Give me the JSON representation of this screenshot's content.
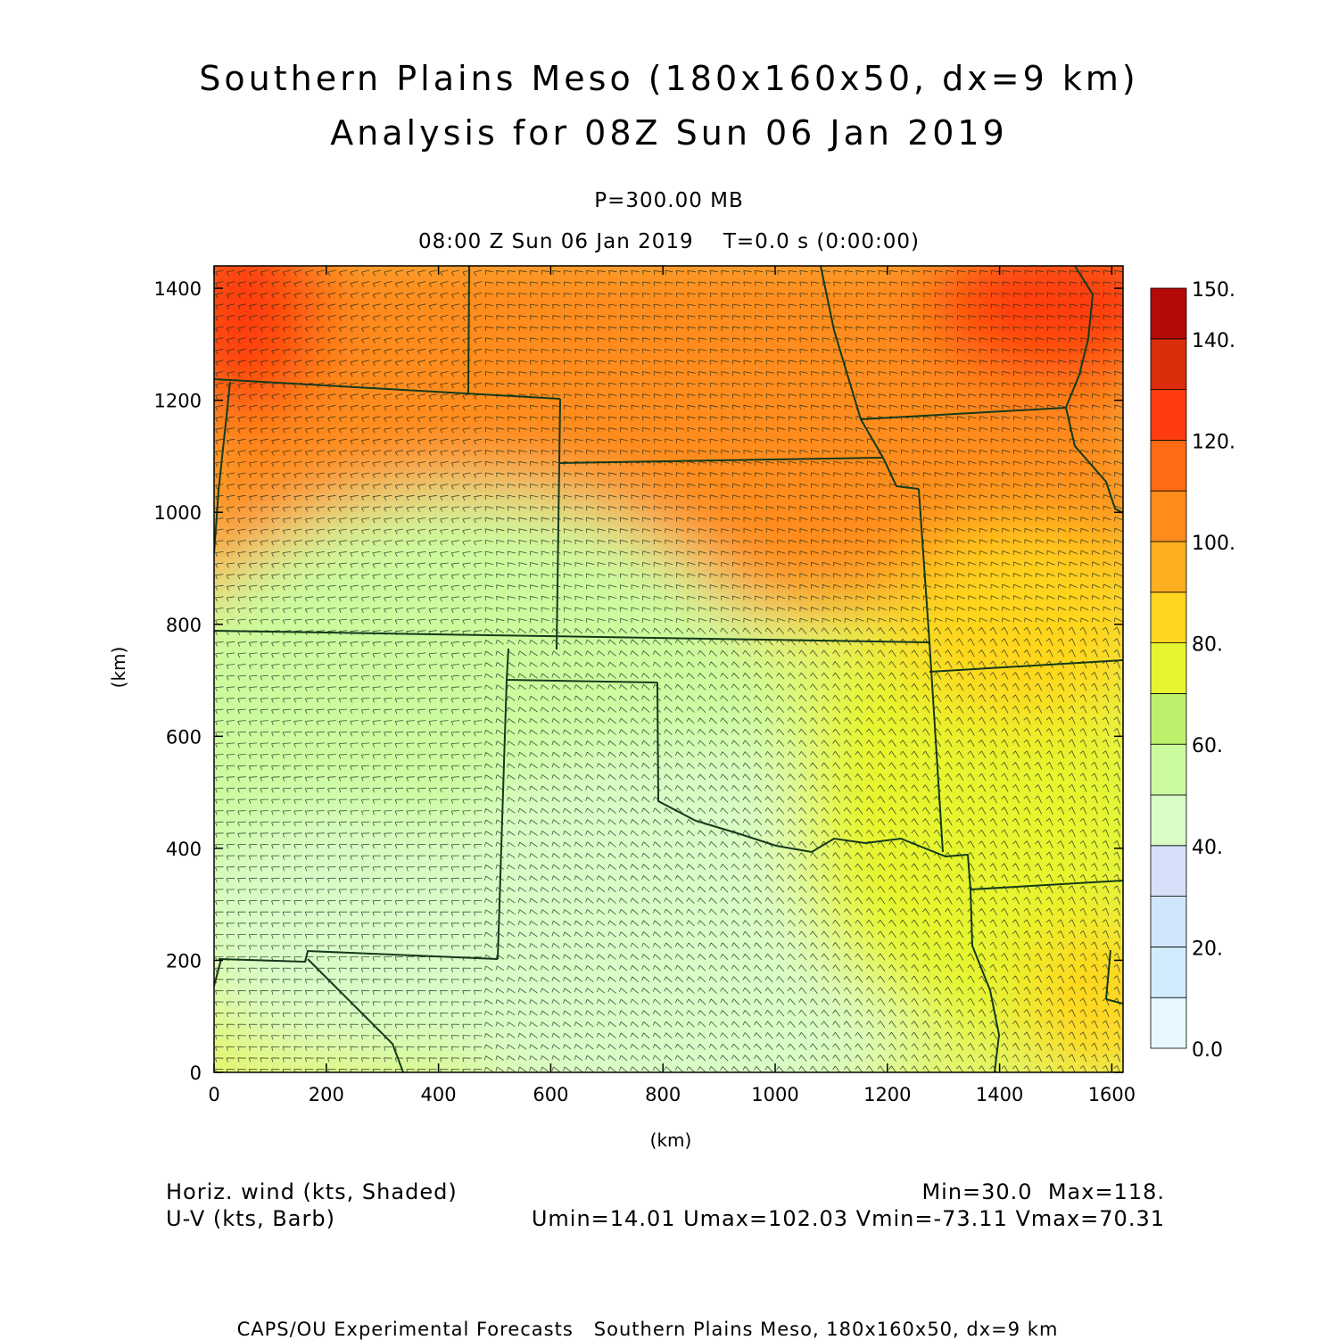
{
  "header": {
    "title_line1": "Southern Plains Meso (180x160x50, dx=9 km)",
    "title_line2": "Analysis for 08Z Sun 06 Jan 2019",
    "level": "P=300.00 MB",
    "valid_time": "08:00 Z Sun 06 Jan 2019    T=0.0 s (0:00:00)"
  },
  "map": {
    "x_axis": {
      "label": "(km)",
      "range": [
        0,
        1620
      ],
      "ticks": [
        "0",
        "200",
        "400",
        "600",
        "800",
        "1000",
        "1200",
        "1400",
        "1600"
      ],
      "tick_values": [
        0,
        200,
        400,
        600,
        800,
        1000,
        1200,
        1400,
        1600
      ]
    },
    "y_axis": {
      "label": "(km)",
      "range": [
        0,
        1440
      ],
      "ticks": [
        "0",
        "200",
        "400",
        "600",
        "800",
        "1000",
        "1200",
        "1400"
      ],
      "tick_values": [
        0,
        200,
        400,
        600,
        800,
        1000,
        1200,
        1400
      ]
    },
    "field": "horizontal wind speed (kts), shaded",
    "barb_color": "#1c2a1c",
    "boundary_color": "#143a1c"
  },
  "colorbar": {
    "labels": [
      "150.",
      "140.",
      "120.",
      "100.",
      "80.",
      "60.",
      "40.",
      "20.",
      "0.0"
    ],
    "label_values": [
      150,
      140,
      120,
      100,
      80,
      60,
      40,
      20,
      0
    ],
    "levels": [
      0,
      10,
      20,
      30,
      40,
      50,
      60,
      70,
      80,
      90,
      100,
      110,
      120,
      130,
      140,
      150
    ],
    "colors": [
      "#e6f7ff",
      "#d2ecff",
      "#cfe6fb",
      "#d6e0f8",
      "#d9fbc6",
      "#ccfb9e",
      "#bdf06a",
      "#e6f52f",
      "#ffd51f",
      "#ffae1f",
      "#ff8c1a",
      "#ff6a14",
      "#ff3c0f",
      "#dc2d0a",
      "#b40a08"
    ]
  },
  "footer": {
    "left_line1": "Horiz. wind (kts, Shaded)",
    "left_line2": "U-V (kts, Barb)",
    "right_line1": "Min=30.0  Max=118.",
    "right_line2": "Umin=14.01 Umax=102.03 Vmin=-73.11 Vmax=70.31",
    "credit": "CAPS/OU Experimental Forecasts   Southern Plains Meso, 180x160x50, dx=9 km"
  }
}
